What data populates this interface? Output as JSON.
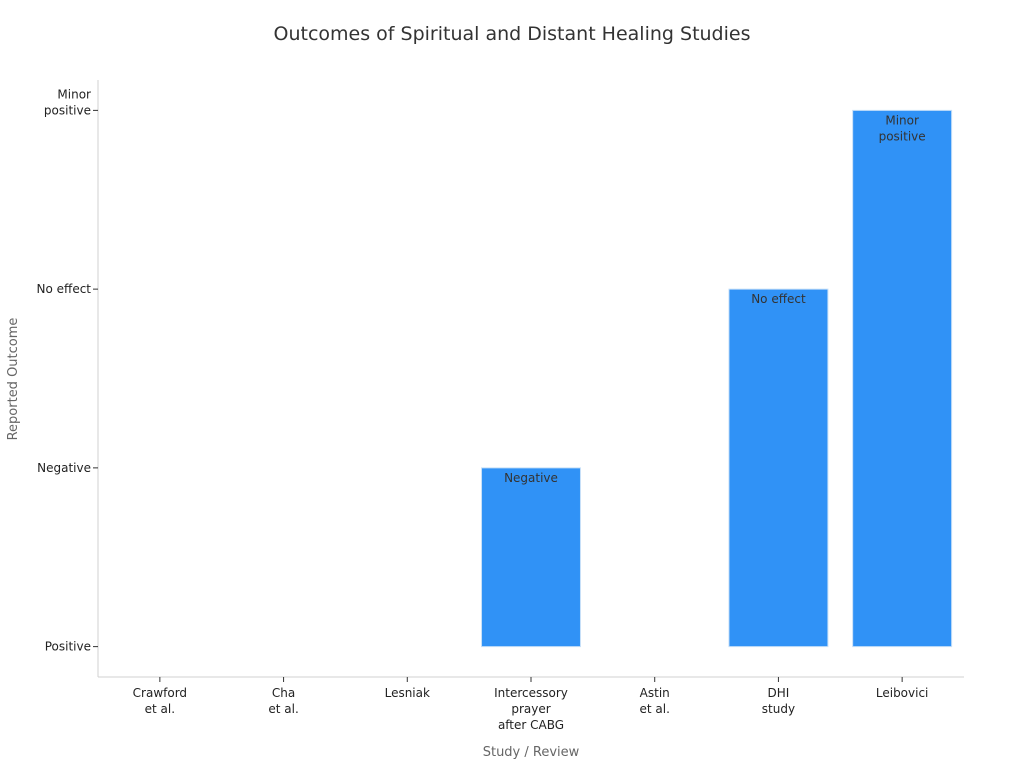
{
  "chart_data": {
    "type": "bar",
    "title": "Outcomes of Spiritual and Distant Healing Studies",
    "xlabel": "Study / Review",
    "ylabel": "Reported Outcome",
    "y_levels": [
      {
        "value": 0,
        "label": [
          "Positive"
        ]
      },
      {
        "value": 1,
        "label": [
          "Negative"
        ]
      },
      {
        "value": 2,
        "label": [
          "No effect"
        ]
      },
      {
        "value": 3,
        "label": [
          "Minor",
          "positive"
        ]
      }
    ],
    "ylim": [
      -0.17,
      3.17
    ],
    "categories": [
      {
        "label": [
          "Crawford",
          "et al."
        ],
        "value": 0,
        "data_label": []
      },
      {
        "label": [
          "Cha",
          "et al."
        ],
        "value": 0,
        "data_label": []
      },
      {
        "label": [
          "Lesniak"
        ],
        "value": 0,
        "data_label": []
      },
      {
        "label": [
          "Intercessory",
          "prayer",
          "after CABG"
        ],
        "value": 1,
        "data_label": [
          "Negative"
        ]
      },
      {
        "label": [
          "Astin",
          "et al."
        ],
        "value": 0,
        "data_label": []
      },
      {
        "label": [
          "DHI",
          "study"
        ],
        "value": 2,
        "data_label": [
          "No effect"
        ]
      },
      {
        "label": [
          "Leibovici"
        ],
        "value": 3,
        "data_label": [
          "Minor",
          "positive"
        ]
      }
    ],
    "colors": {
      "bar": "#3092f6",
      "bar_edge": "#c8e0f8",
      "axis": "#d0d0d0",
      "tick": "#333333"
    }
  }
}
